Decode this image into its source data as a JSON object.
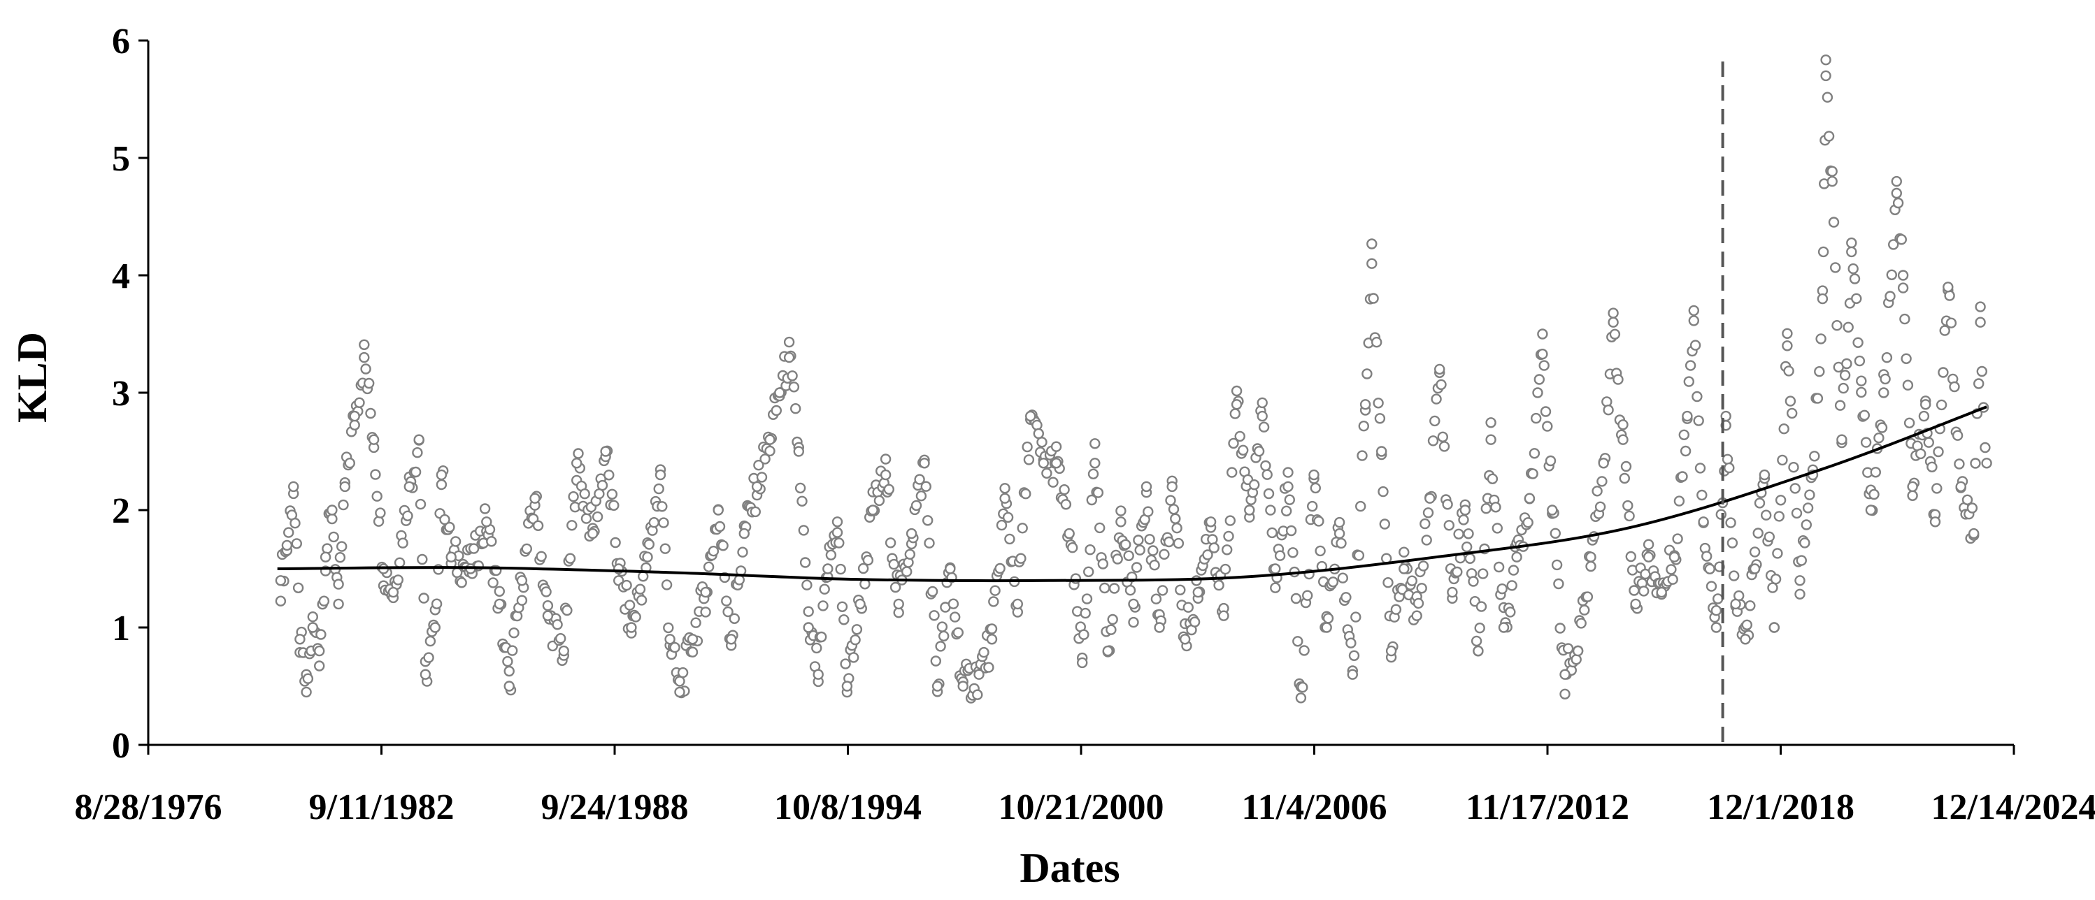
{
  "chart_data": {
    "type": "scatter",
    "xlabel": "Dates",
    "ylabel": "KLD",
    "x_axis": {
      "type": "date",
      "range": [
        "1976-08-28",
        "2024-12-14"
      ],
      "tick_labels": [
        "8/28/1976",
        "9/11/1982",
        "9/24/1988",
        "10/8/1994",
        "10/21/2000",
        "11/4/2006",
        "11/17/2012",
        "12/1/2018",
        "12/14/2024"
      ]
    },
    "y_axis": {
      "range": [
        0,
        6
      ],
      "tick_labels": [
        "0",
        "1",
        "2",
        "3",
        "4",
        "5",
        "6"
      ]
    },
    "grid": false,
    "legend": "none",
    "point_color": "#808080",
    "point_fill": "#ffffff",
    "trend_color": "#000000",
    "marker_line_color": "#555555",
    "series": [
      {
        "kind": "scatter",
        "points": [
          [
            "1980-02-01",
            1.4
          ],
          [
            "1980-04-01",
            1.7
          ],
          [
            "1980-06-01",
            2.2
          ],
          [
            "1980-08-01",
            0.9
          ],
          [
            "1980-10-01",
            0.45
          ],
          [
            "1980-12-01",
            1.0
          ],
          [
            "1981-02-01",
            0.8
          ],
          [
            "1981-04-01",
            1.6
          ],
          [
            "1981-06-01",
            2.0
          ],
          [
            "1981-08-01",
            1.2
          ],
          [
            "1981-10-01",
            2.2
          ],
          [
            "1982-01-01",
            2.8
          ],
          [
            "1982-04-01",
            3.3
          ],
          [
            "1982-07-01",
            2.6
          ],
          [
            "1982-10-01",
            1.5
          ],
          [
            "1983-01-01",
            1.3
          ],
          [
            "1983-06-01",
            2.2
          ],
          [
            "1983-09-01",
            2.6
          ],
          [
            "1983-11-01",
            0.6
          ],
          [
            "1984-02-01",
            1.0
          ],
          [
            "1984-04-01",
            2.3
          ],
          [
            "1984-07-01",
            1.6
          ],
          [
            "1985-01-01",
            1.5
          ],
          [
            "1985-06-01",
            1.9
          ],
          [
            "1985-10-01",
            1.2
          ],
          [
            "1986-01-01",
            0.5
          ],
          [
            "1986-05-01",
            1.4
          ],
          [
            "1986-09-01",
            2.1
          ],
          [
            "1987-01-01",
            1.1
          ],
          [
            "1987-06-01",
            0.8
          ],
          [
            "1987-10-01",
            2.4
          ],
          [
            "1988-03-01",
            1.8
          ],
          [
            "1988-07-01",
            2.5
          ],
          [
            "1988-11-01",
            1.5
          ],
          [
            "1989-03-01",
            1.0
          ],
          [
            "1989-08-01",
            1.6
          ],
          [
            "1989-12-01",
            2.3
          ],
          [
            "1990-03-01",
            0.9
          ],
          [
            "1990-06-01",
            0.45
          ],
          [
            "1990-10-01",
            0.9
          ],
          [
            "1991-02-01",
            1.3
          ],
          [
            "1991-06-01",
            2.0
          ],
          [
            "1991-10-01",
            0.9
          ],
          [
            "1992-02-01",
            1.8
          ],
          [
            "1992-06-01",
            2.2
          ],
          [
            "1992-10-01",
            2.6
          ],
          [
            "1993-01-01",
            3.0
          ],
          [
            "1993-04-01",
            3.3
          ],
          [
            "1993-07-01",
            2.5
          ],
          [
            "1993-10-01",
            1.0
          ],
          [
            "1994-01-01",
            0.6
          ],
          [
            "1994-04-01",
            1.5
          ],
          [
            "1994-07-01",
            1.9
          ],
          [
            "1994-10-01",
            0.5
          ],
          [
            "1995-02-01",
            1.2
          ],
          [
            "1995-06-01",
            2.0
          ],
          [
            "1995-10-01",
            2.3
          ],
          [
            "1996-02-01",
            1.2
          ],
          [
            "1996-06-01",
            1.8
          ],
          [
            "1996-10-01",
            2.4
          ],
          [
            "1997-02-01",
            0.5
          ],
          [
            "1997-06-01",
            1.5
          ],
          [
            "1997-10-01",
            0.5
          ],
          [
            "1998-03-01",
            0.6
          ],
          [
            "1998-07-01",
            0.9
          ],
          [
            "1998-11-01",
            2.1
          ],
          [
            "1999-03-01",
            1.2
          ],
          [
            "1999-07-01",
            2.8
          ],
          [
            "1999-11-01",
            2.4
          ],
          [
            "2000-03-01",
            2.4
          ],
          [
            "2000-07-01",
            1.8
          ],
          [
            "2000-11-01",
            0.7
          ],
          [
            "2001-03-01",
            2.4
          ],
          [
            "2001-07-01",
            0.8
          ],
          [
            "2001-11-01",
            1.9
          ],
          [
            "2002-03-01",
            1.2
          ],
          [
            "2002-07-01",
            2.2
          ],
          [
            "2002-11-01",
            1.0
          ],
          [
            "2003-03-01",
            2.2
          ],
          [
            "2003-07-01",
            0.9
          ],
          [
            "2003-11-01",
            1.3
          ],
          [
            "2004-03-01",
            1.9
          ],
          [
            "2004-07-01",
            1.1
          ],
          [
            "2004-11-01",
            2.9
          ],
          [
            "2005-03-01",
            2.0
          ],
          [
            "2005-07-01",
            2.8
          ],
          [
            "2005-11-01",
            1.5
          ],
          [
            "2006-03-01",
            2.2
          ],
          [
            "2006-07-01",
            0.4
          ],
          [
            "2006-11-01",
            2.3
          ],
          [
            "2007-03-01",
            1.0
          ],
          [
            "2007-07-01",
            1.8
          ],
          [
            "2007-11-01",
            0.6
          ],
          [
            "2008-03-01",
            2.9
          ],
          [
            "2008-05-01",
            4.1
          ],
          [
            "2008-08-01",
            2.5
          ],
          [
            "2008-11-01",
            0.8
          ],
          [
            "2009-03-01",
            1.5
          ],
          [
            "2009-07-01",
            1.1
          ],
          [
            "2009-11-01",
            2.1
          ],
          [
            "2010-02-01",
            3.2
          ],
          [
            "2010-06-01",
            1.3
          ],
          [
            "2010-10-01",
            2.0
          ],
          [
            "2011-02-01",
            0.8
          ],
          [
            "2011-06-01",
            2.6
          ],
          [
            "2011-10-01",
            1.0
          ],
          [
            "2012-02-01",
            1.6
          ],
          [
            "2012-06-01",
            2.1
          ],
          [
            "2012-10-01",
            3.5
          ],
          [
            "2013-01-01",
            2.0
          ],
          [
            "2013-05-01",
            0.6
          ],
          [
            "2013-09-01",
            0.8
          ],
          [
            "2014-01-01",
            1.6
          ],
          [
            "2014-05-01",
            2.4
          ],
          [
            "2014-08-01",
            3.6
          ],
          [
            "2014-11-01",
            2.6
          ],
          [
            "2015-03-01",
            1.2
          ],
          [
            "2015-07-01",
            1.6
          ],
          [
            "2015-11-01",
            1.3
          ],
          [
            "2016-03-01",
            1.6
          ],
          [
            "2016-07-01",
            2.8
          ],
          [
            "2016-09-01",
            3.7
          ],
          [
            "2016-12-01",
            1.9
          ],
          [
            "2017-04-01",
            1.0
          ],
          [
            "2017-07-01",
            2.8
          ],
          [
            "2017-10-01",
            1.2
          ],
          [
            "2018-01-01",
            0.9
          ],
          [
            "2018-04-01",
            1.5
          ],
          [
            "2018-07-01",
            2.3
          ],
          [
            "2018-10-01",
            1.0
          ],
          [
            "2019-02-01",
            3.4
          ],
          [
            "2019-06-01",
            1.4
          ],
          [
            "2019-10-01",
            2.3
          ],
          [
            "2020-01-01",
            3.8
          ],
          [
            "2020-02-01",
            5.7
          ],
          [
            "2020-04-01",
            4.8
          ],
          [
            "2020-07-01",
            2.6
          ],
          [
            "2020-10-01",
            4.2
          ],
          [
            "2021-01-01",
            3.1
          ],
          [
            "2021-04-01",
            2.0
          ],
          [
            "2021-08-01",
            3.0
          ],
          [
            "2021-12-01",
            4.8
          ],
          [
            "2022-02-01",
            4.0
          ],
          [
            "2022-05-01",
            2.2
          ],
          [
            "2022-09-01",
            2.9
          ],
          [
            "2022-12-01",
            1.9
          ],
          [
            "2023-04-01",
            3.9
          ],
          [
            "2023-08-01",
            2.2
          ],
          [
            "2023-12-01",
            1.8
          ],
          [
            "2024-02-01",
            3.6
          ],
          [
            "2024-04-01",
            2.4
          ]
        ]
      },
      {
        "kind": "trend",
        "points": [
          [
            "1980-01-01",
            1.5
          ],
          [
            "1985-01-01",
            1.51
          ],
          [
            "1990-01-01",
            1.47
          ],
          [
            "1995-01-01",
            1.41
          ],
          [
            "2000-01-01",
            1.4
          ],
          [
            "2005-01-01",
            1.43
          ],
          [
            "2010-01-01",
            1.6
          ],
          [
            "2015-01-01",
            1.85
          ],
          [
            "2020-01-01",
            2.35
          ],
          [
            "2024-04-01",
            2.88
          ]
        ]
      }
    ],
    "vertical_marker": {
      "x": "2017-06-01",
      "style": "dashed"
    }
  }
}
